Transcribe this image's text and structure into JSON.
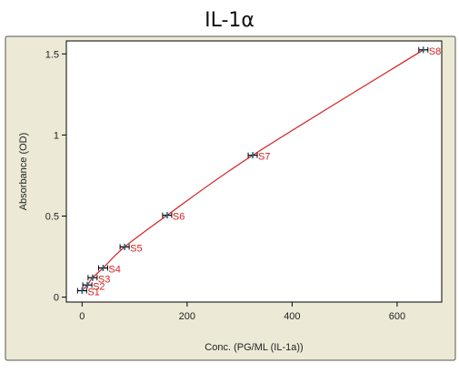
{
  "chart_data": {
    "type": "line",
    "title": "IL-1α",
    "xlabel": "Conc. (PG/ML (IL-1a))",
    "ylabel": "Absorbance (OD)",
    "xlim": [
      -30,
      685
    ],
    "ylim": [
      -0.03,
      1.58
    ],
    "x_ticks": [
      0,
      200,
      400,
      600
    ],
    "y_ticks": [
      0,
      0.5,
      1,
      1.5
    ],
    "x_tick_labels": [
      "0",
      "200",
      "400",
      "600"
    ],
    "y_tick_labels": [
      "0",
      "0.5",
      "1",
      "1.5"
    ],
    "grid": false,
    "colors": {
      "curve": "#d62020",
      "point_label": "#d62020",
      "marker": "#1a6b8a",
      "plot_bg": "#ffffff",
      "frame_bg": "#ecead6"
    },
    "points": [
      {
        "label": "S1",
        "x": 0,
        "y": 0.04
      },
      {
        "label": "S2",
        "x": 10,
        "y": 0.075
      },
      {
        "label": "S3",
        "x": 20,
        "y": 0.12
      },
      {
        "label": "S4",
        "x": 40,
        "y": 0.18
      },
      {
        "label": "S5",
        "x": 81,
        "y": 0.31
      },
      {
        "label": "S6",
        "x": 162,
        "y": 0.505
      },
      {
        "label": "S7",
        "x": 325,
        "y": 0.875
      },
      {
        "label": "S8",
        "x": 650,
        "y": 1.525
      }
    ]
  }
}
